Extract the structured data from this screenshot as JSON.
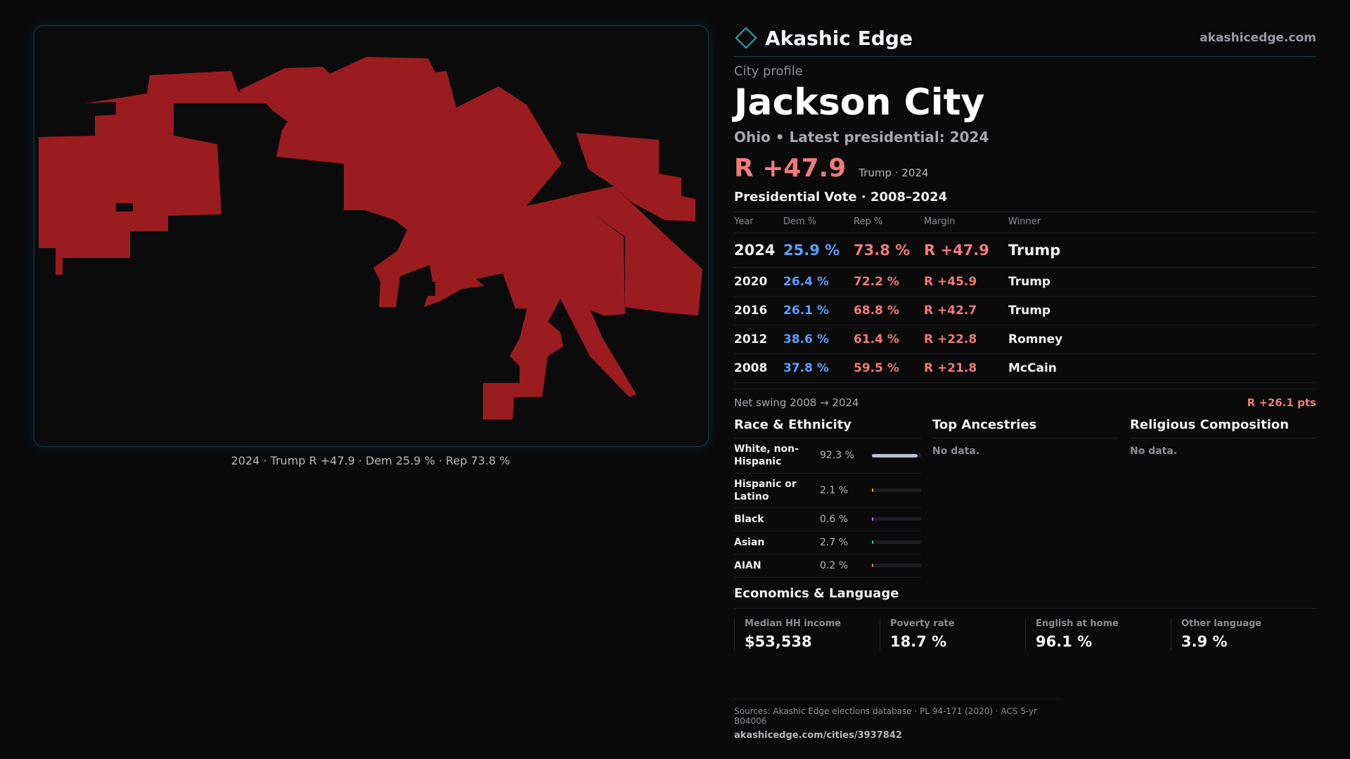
{
  "brand": {
    "name": "Akashic Edge",
    "url": "akashicedge.com"
  },
  "profile": {
    "eyebrow": "City profile",
    "title": "Jackson City",
    "subtitle": "Ohio • Latest presidential: 2024",
    "headline_margin": "R +47.9",
    "headline_note": "Trump · 2024"
  },
  "map": {
    "caption": "2024 · Trump R +47.9 · Dem 25.9 % · Rep 73.8 %",
    "fill_color": "#9b1c1f"
  },
  "votes": {
    "title": "Presidential Vote · 2008–2024",
    "headers": [
      "Year",
      "Dem %",
      "Rep %",
      "Margin",
      "Winner"
    ],
    "rows": [
      {
        "year": "2024",
        "dem": "25.9 %",
        "rep": "73.8 %",
        "margin": "R +47.9",
        "winner": "Trump"
      },
      {
        "year": "2020",
        "dem": "26.4 %",
        "rep": "72.2 %",
        "margin": "R +45.9",
        "winner": "Trump"
      },
      {
        "year": "2016",
        "dem": "26.1 %",
        "rep": "68.8 %",
        "margin": "R +42.7",
        "winner": "Trump"
      },
      {
        "year": "2012",
        "dem": "38.6 %",
        "rep": "61.4 %",
        "margin": "R +22.8",
        "winner": "Romney"
      },
      {
        "year": "2008",
        "dem": "37.8 %",
        "rep": "59.5 %",
        "margin": "R +21.8",
        "winner": "McCain"
      }
    ],
    "swing_label": "Net swing 2008 → 2024",
    "swing_value": "R +26.1 pts"
  },
  "race": {
    "title": "Race & Ethnicity",
    "rows": [
      {
        "label": "White, non-Hispanic",
        "pct": "92.3 %",
        "value": 0.923,
        "color": "#b8c0cc"
      },
      {
        "label": "Hispanic or Latino",
        "pct": "2.1 %",
        "value": 0.021,
        "color": "#e0a030"
      },
      {
        "label": "Black",
        "pct": "0.6 %",
        "value": 0.006,
        "color": "#b070e0"
      },
      {
        "label": "Asian",
        "pct": "2.7 %",
        "value": 0.027,
        "color": "#30c090"
      },
      {
        "label": "AIAN",
        "pct": "0.2 %",
        "value": 0.002,
        "color": "#e07050"
      }
    ]
  },
  "ancestries": {
    "title": "Top Ancestries",
    "empty": "No data."
  },
  "religion": {
    "title": "Religious Composition",
    "empty": "No data."
  },
  "economics": {
    "title": "Economics & Language",
    "cells": [
      {
        "label": "Median HH income",
        "value": "$53,538"
      },
      {
        "label": "Poverty rate",
        "value": "18.7 %"
      },
      {
        "label": "English at home",
        "value": "96.1 %"
      },
      {
        "label": "Other language",
        "value": "3.9 %"
      }
    ]
  },
  "footer": {
    "sources": "Sources: Akashic Edge elections database · PL 94-171 (2020) · ACS 5-yr B04006",
    "url": "akashicedge.com/cities/3937842"
  }
}
